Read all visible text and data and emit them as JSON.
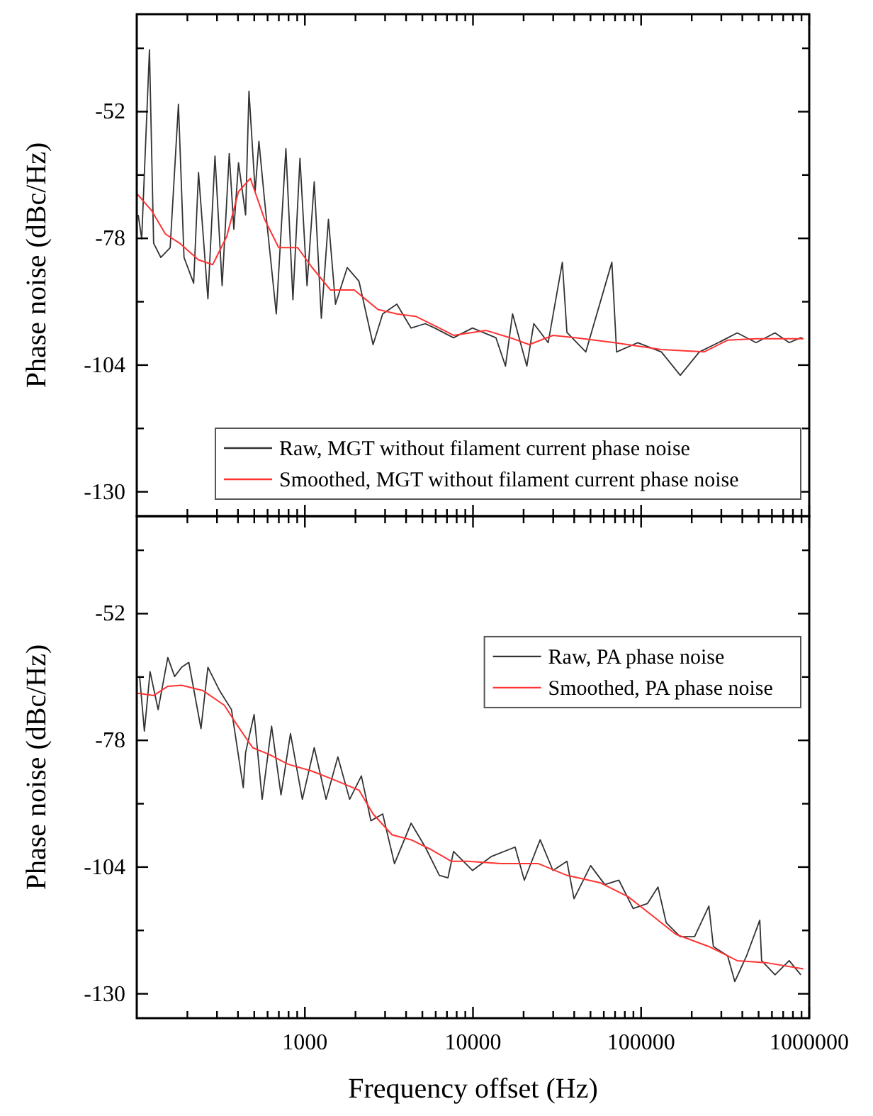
{
  "chart_data": [
    {
      "type": "line",
      "ylabel": "Phase noise (dBc/Hz)",
      "log": "x",
      "xlim": [
        100,
        1000000
      ],
      "xticks": [
        {
          "value": 200,
          "label": null
        },
        {
          "value": 300,
          "label": null
        },
        {
          "value": 400,
          "label": null
        },
        {
          "value": 500,
          "label": null
        },
        {
          "value": 600,
          "label": null
        },
        {
          "value": 700,
          "label": null
        },
        {
          "value": 800,
          "label": null
        },
        {
          "value": 900,
          "label": null
        },
        1000,
        {
          "value": 2000,
          "label": null
        },
        {
          "value": 3000,
          "label": null
        },
        {
          "value": 4000,
          "label": null
        },
        {
          "value": 5000,
          "label": null
        },
        {
          "value": 6000,
          "label": null
        },
        {
          "value": 7000,
          "label": null
        },
        {
          "value": 8000,
          "label": null
        },
        {
          "value": 9000,
          "label": null
        },
        10000,
        {
          "value": 20000,
          "label": null
        },
        {
          "value": 30000,
          "label": null
        },
        {
          "value": 40000,
          "label": null
        },
        {
          "value": 50000,
          "label": null
        },
        {
          "value": 60000,
          "label": null
        },
        {
          "value": 70000,
          "label": null
        },
        {
          "value": 80000,
          "label": null
        },
        {
          "value": 90000,
          "label": null
        },
        100000,
        {
          "value": 200000,
          "label": null
        },
        {
          "value": 300000,
          "label": null
        },
        {
          "value": 400000,
          "label": null
        },
        {
          "value": 500000,
          "label": null
        },
        {
          "value": 600000,
          "label": null
        },
        {
          "value": 700000,
          "label": null
        },
        {
          "value": 800000,
          "label": null
        },
        {
          "value": 900000,
          "label": null
        },
        1000000
      ],
      "ylim": [
        -135,
        -32
      ],
      "yticks": [
        {
          "value": -39,
          "label": null
        },
        -52,
        {
          "value": -65,
          "label": null
        },
        -78,
        {
          "value": -91,
          "label": null
        },
        -104,
        {
          "value": -117,
          "label": null
        },
        -130
      ],
      "tick_labels": "y",
      "legend": "bottom right",
      "grid": false,
      "series": [
        {
          "name": "Raw, MGT without filament current phase noise",
          "color": "#333333",
          "x": [
            102,
            107,
            119,
            126,
            139,
            158,
            177,
            191,
            218,
            233,
            265,
            292,
            322,
            355,
            378,
            403,
            444,
            465,
            506,
            533,
            576,
            676,
            771,
            849,
            935,
            1030,
            1137,
            1253,
            1381,
            1521,
            1786,
            2098,
            2545,
            2903,
            3524,
            4284,
            5200,
            5920,
            7660,
            9930,
            13700,
            15600,
            17200,
            20900,
            23000,
            28000,
            34000,
            36200,
            46900,
            67000,
            71500,
            95600,
            132000,
            171000,
            222000,
            288000,
            373000,
            483000,
            626000,
            760000,
            891000,
            922000
          ],
          "values": [
            -73.2,
            -78.1,
            -39.3,
            -79,
            -81.9,
            -79.9,
            -50.5,
            -81.9,
            -87.2,
            -64.5,
            -90.4,
            -61.1,
            -87.7,
            -60.6,
            -76.1,
            -62.5,
            -73.2,
            -47.8,
            -68.3,
            -58.1,
            -70.3,
            -93.5,
            -59.6,
            -90.6,
            -61.6,
            -87.7,
            -66.4,
            -94.4,
            -74.1,
            -91.5,
            -84,
            -86.8,
            -99.8,
            -93.5,
            -91.5,
            -96.4,
            -95.5,
            -96.4,
            -98.4,
            -96.4,
            -98.4,
            -104.2,
            -93.5,
            -104.2,
            -95.5,
            -99.4,
            -82.9,
            -97.3,
            -101.3,
            -82.9,
            -101.3,
            -99.4,
            -101.3,
            -106.1,
            -101.3,
            -99.4,
            -97.4,
            -99.4,
            -97.4,
            -99.4,
            -98.4,
            -98.6
          ]
        },
        {
          "name": "Smoothed, MGT without filament current phase noise",
          "color": "#ff3333",
          "x": [
            100,
            122,
            148,
            180,
            233,
            283,
            343,
            403,
            474,
            576,
            699,
            906,
            1100,
            1422,
            1968,
            2724,
            3524,
            4560,
            6310,
            7660,
            12000,
            16700,
            21600,
            29900,
            41300,
            69200,
            132000,
            237000,
            327000,
            483000,
            922000
          ],
          "values": [
            -68.8,
            -72.2,
            -77.1,
            -79,
            -82.4,
            -83.4,
            -77.6,
            -68.4,
            -65.7,
            -74.1,
            -79.9,
            -79.9,
            -83.9,
            -88.6,
            -88.6,
            -92.6,
            -93.5,
            -94,
            -96.4,
            -97.9,
            -96.9,
            -98.4,
            -99.8,
            -97.9,
            -98.4,
            -99.4,
            -100.8,
            -101.3,
            -98.9,
            -98.6,
            -98.6
          ]
        }
      ]
    },
    {
      "type": "line",
      "xlabel": "Frequency offset (Hz)",
      "ylabel": "Phase noise (dBc/Hz)",
      "log": "x",
      "xlim": [
        100,
        1000000
      ],
      "xticks": [
        {
          "value": 200,
          "label": null
        },
        {
          "value": 300,
          "label": null
        },
        {
          "value": 400,
          "label": null
        },
        {
          "value": 500,
          "label": null
        },
        {
          "value": 600,
          "label": null
        },
        {
          "value": 700,
          "label": null
        },
        {
          "value": 800,
          "label": null
        },
        {
          "value": 900,
          "label": null
        },
        1000,
        {
          "value": 2000,
          "label": null
        },
        {
          "value": 3000,
          "label": null
        },
        {
          "value": 4000,
          "label": null
        },
        {
          "value": 5000,
          "label": null
        },
        {
          "value": 6000,
          "label": null
        },
        {
          "value": 7000,
          "label": null
        },
        {
          "value": 8000,
          "label": null
        },
        {
          "value": 9000,
          "label": null
        },
        10000,
        {
          "value": 20000,
          "label": null
        },
        {
          "value": 30000,
          "label": null
        },
        {
          "value": 40000,
          "label": null
        },
        {
          "value": 50000,
          "label": null
        },
        {
          "value": 60000,
          "label": null
        },
        {
          "value": 70000,
          "label": null
        },
        {
          "value": 80000,
          "label": null
        },
        {
          "value": 90000,
          "label": null
        },
        100000,
        {
          "value": 200000,
          "label": null
        },
        {
          "value": 300000,
          "label": null
        },
        {
          "value": 400000,
          "label": null
        },
        {
          "value": 500000,
          "label": null
        },
        {
          "value": 600000,
          "label": null
        },
        {
          "value": 700000,
          "label": null
        },
        {
          "value": 800000,
          "label": null
        },
        {
          "value": 900000,
          "label": null
        },
        1000000
      ],
      "ylim": [
        -135,
        -32
      ],
      "yticks": [
        {
          "value": -39,
          "label": null
        },
        -52,
        {
          "value": -65,
          "label": null
        },
        -78,
        {
          "value": -91,
          "label": null
        },
        -104,
        {
          "value": -117,
          "label": null
        },
        -130
      ],
      "legend": "right",
      "grid": false,
      "series": [
        {
          "name": "Raw, PA phase noise",
          "color": "#333333",
          "x": [
            104,
            111,
            120,
            134,
            153,
            168,
            185,
            204,
            241,
            265,
            311,
            366,
            430,
            444,
            499,
            557,
            634,
            721,
            821,
            966,
            1137,
            1337,
            1571,
            1846,
            2168,
            2470,
            2903,
            3412,
            4284,
            5200,
            6310,
            7100,
            7660,
            9930,
            12900,
            17800,
            20200,
            25100,
            29900,
            36200,
            39900,
            50100,
            60800,
            73800,
            89700,
            109000,
            126000,
            141000,
            171000,
            208000,
            253000,
            269000,
            327000,
            361000,
            424000,
            508000,
            521000,
            626000,
            760000,
            891000
          ],
          "values": [
            -64.9,
            -76.1,
            -63.9,
            -71.7,
            -61,
            -64.9,
            -63,
            -62,
            -75.6,
            -63,
            -67.8,
            -71.7,
            -87.7,
            -80.5,
            -72.7,
            -90.1,
            -75.1,
            -89.2,
            -76.6,
            -90.1,
            -79.5,
            -90.1,
            -81.4,
            -90.1,
            -85.3,
            -94.5,
            -93.1,
            -103.3,
            -95,
            -99.9,
            -105.7,
            -106.2,
            -100.8,
            -104.7,
            -101.8,
            -99.9,
            -106.7,
            -98.4,
            -104.7,
            -102.8,
            -110.5,
            -103.7,
            -107.6,
            -106.7,
            -112.5,
            -111.5,
            -108.1,
            -115.4,
            -118.3,
            -118.3,
            -112,
            -120.3,
            -122.2,
            -127.5,
            -122.2,
            -114.9,
            -123.2,
            -126.1,
            -123.2,
            -126.1
          ]
        },
        {
          "name": "Smoothed, PA phase noise",
          "color": "#ff3333",
          "x": [
            100,
            126,
            153,
            185,
            248,
            332,
            391,
            489,
            614,
            795,
            1100,
            1422,
            2098,
            2545,
            3304,
            4284,
            5546,
            7420,
            9310,
            14700,
            24500,
            36200,
            56900,
            83900,
            116000,
            161000,
            253000,
            373000,
            550000,
            922000
          ],
          "values": [
            -68.3,
            -68.8,
            -66.9,
            -66.7,
            -67.8,
            -70.8,
            -74.6,
            -79.5,
            -80.9,
            -82.9,
            -84.3,
            -85.8,
            -88.2,
            -93.1,
            -97.4,
            -98.4,
            -100.3,
            -102.8,
            -102.8,
            -103.3,
            -103.3,
            -105.7,
            -107.2,
            -110.1,
            -113.9,
            -117.8,
            -120.3,
            -123.2,
            -123.6,
            -124.9
          ]
        }
      ]
    }
  ]
}
